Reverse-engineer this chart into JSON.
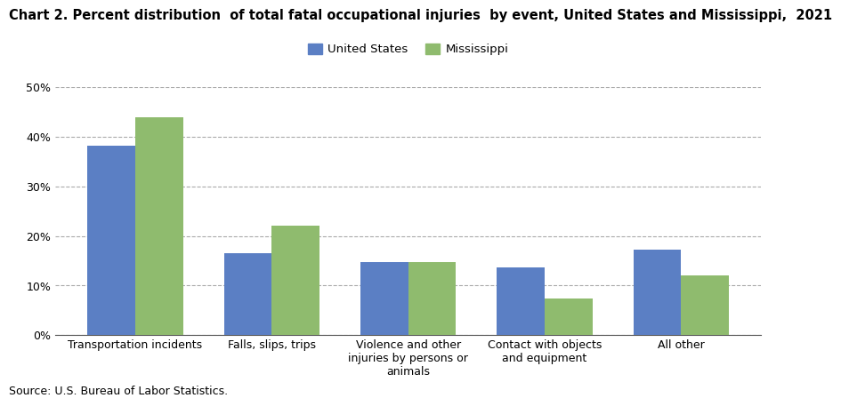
{
  "title": "Chart 2. Percent distribution  of total fatal occupational injuries  by event, United States and Mississippi,  2021",
  "categories": [
    "Transportation incidents",
    "Falls, slips, trips",
    "Violence and other\ninjuries by persons or\nanimals",
    "Contact with objects\nand equipment",
    "All other"
  ],
  "us_values": [
    38.3,
    16.5,
    14.8,
    13.6,
    17.2
  ],
  "ms_values": [
    44.0,
    22.0,
    14.8,
    7.4,
    12.1
  ],
  "us_color": "#5b7fc4",
  "ms_color": "#8fbb6e",
  "us_label": "United States",
  "ms_label": "Mississippi",
  "ylim": [
    0,
    50
  ],
  "yticks": [
    0,
    10,
    20,
    30,
    40,
    50
  ],
  "ytick_labels": [
    "0%",
    "10%",
    "20%",
    "30%",
    "40%",
    "50%"
  ],
  "source_text": "Source: U.S. Bureau of Labor Statistics.",
  "background_color": "#ffffff",
  "grid_color": "#aaaaaa",
  "bar_width": 0.35,
  "title_fontsize": 10.5,
  "legend_fontsize": 9.5,
  "tick_fontsize": 9,
  "source_fontsize": 9
}
